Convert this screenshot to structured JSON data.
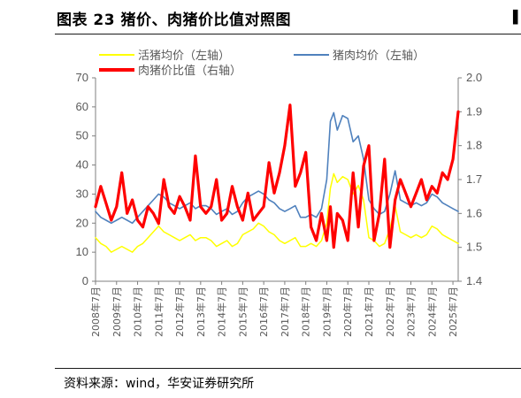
{
  "header": {
    "title": "图表 23 猪价、肉猪价比值对照图"
  },
  "footer": {
    "source": "资料来源：wind，华安证券研究所"
  },
  "colors": {
    "live_pig": "#ffff00",
    "pork": "#4f81bd",
    "ratio": "#ff0000",
    "axis": "#7f7f7f"
  },
  "chart_data": {
    "type": "line",
    "x_range": [
      2008.5,
      2025.75
    ],
    "x_ticks": [
      {
        "pos": 2008.5,
        "label": "2008年7月"
      },
      {
        "pos": 2009.5,
        "label": "2009年7月"
      },
      {
        "pos": 2010.5,
        "label": "2010年7月"
      },
      {
        "pos": 2011.5,
        "label": "2011年7月"
      },
      {
        "pos": 2012.5,
        "label": "2012年7月"
      },
      {
        "pos": 2013.5,
        "label": "2013年7月"
      },
      {
        "pos": 2014.5,
        "label": "2014年7月"
      },
      {
        "pos": 2015.5,
        "label": "2015年7月"
      },
      {
        "pos": 2016.5,
        "label": "2016年7月"
      },
      {
        "pos": 2017.5,
        "label": "2017年7月"
      },
      {
        "pos": 2018.5,
        "label": "2018年7月"
      },
      {
        "pos": 2019.5,
        "label": "2019年7月"
      },
      {
        "pos": 2020.5,
        "label": "2020年7月"
      },
      {
        "pos": 2021.5,
        "label": "2021年7月"
      },
      {
        "pos": 2022.5,
        "label": "2022年7月"
      },
      {
        "pos": 2023.5,
        "label": "2023年7月"
      },
      {
        "pos": 2024.5,
        "label": "2024年7月"
      },
      {
        "pos": 2025.5,
        "label": "2025年7月"
      }
    ],
    "y_left": {
      "range": [
        0,
        70
      ],
      "ticks": [
        "0",
        "10",
        "20",
        "30",
        "40",
        "50",
        "60",
        "70"
      ]
    },
    "y_right": {
      "range": [
        1.4,
        2.0
      ],
      "ticks": [
        "1.4",
        "1.5",
        "1.6",
        "1.7",
        "1.8",
        "1.9",
        "2.0"
      ]
    },
    "legend": [
      {
        "label": "活猪均价（左轴）"
      },
      {
        "label": "猪肉均价（左轴）"
      },
      {
        "label": "肉猪价比值（右轴）"
      }
    ],
    "series": [
      {
        "name": "活猪均价（左轴）",
        "axis": "left",
        "x": [
          2008.5,
          2008.75,
          2009.0,
          2009.25,
          2009.5,
          2009.75,
          2010.0,
          2010.25,
          2010.5,
          2010.75,
          2011.0,
          2011.25,
          2011.5,
          2011.75,
          2012.0,
          2012.25,
          2012.5,
          2012.75,
          2013.0,
          2013.25,
          2013.5,
          2013.75,
          2014.0,
          2014.25,
          2014.5,
          2014.75,
          2015.0,
          2015.25,
          2015.5,
          2015.75,
          2016.0,
          2016.25,
          2016.5,
          2016.75,
          2017.0,
          2017.25,
          2017.5,
          2017.75,
          2018.0,
          2018.25,
          2018.5,
          2018.75,
          2019.0,
          2019.25,
          2019.5,
          2019.67,
          2019.83,
          2020.0,
          2020.25,
          2020.5,
          2020.75,
          2021.0,
          2021.25,
          2021.5,
          2021.75,
          2022.0,
          2022.25,
          2022.5,
          2022.75,
          2023.0,
          2023.25,
          2023.5,
          2023.75,
          2024.0,
          2024.25,
          2024.5,
          2024.75,
          2025.0,
          2025.25,
          2025.5,
          2025.75
        ],
        "values": [
          15,
          13,
          12,
          10,
          11,
          12,
          11,
          10,
          12,
          13,
          15,
          17,
          19,
          17,
          16,
          15,
          14,
          15,
          16,
          14,
          15,
          15,
          14,
          12,
          13,
          14,
          12,
          13,
          16,
          17,
          18,
          20,
          19,
          17,
          16,
          14,
          13,
          14,
          15,
          12,
          12,
          13,
          12,
          14,
          20,
          32,
          37,
          34,
          36,
          35,
          30,
          33,
          28,
          15,
          14,
          12,
          13,
          18,
          26,
          17,
          16,
          15,
          16,
          15,
          16,
          19,
          18,
          16,
          15,
          14,
          13
        ]
      },
      {
        "name": "猪肉均价（左轴）",
        "axis": "left",
        "x": [
          2008.5,
          2008.75,
          2009.0,
          2009.25,
          2009.5,
          2009.75,
          2010.0,
          2010.25,
          2010.5,
          2010.75,
          2011.0,
          2011.25,
          2011.5,
          2011.75,
          2012.0,
          2012.25,
          2012.5,
          2012.75,
          2013.0,
          2013.25,
          2013.5,
          2013.75,
          2014.0,
          2014.25,
          2014.5,
          2014.75,
          2015.0,
          2015.25,
          2015.5,
          2015.75,
          2016.0,
          2016.25,
          2016.5,
          2016.75,
          2017.0,
          2017.25,
          2017.5,
          2017.75,
          2018.0,
          2018.25,
          2018.5,
          2018.75,
          2019.0,
          2019.25,
          2019.5,
          2019.67,
          2019.83,
          2020.0,
          2020.25,
          2020.5,
          2020.75,
          2021.0,
          2021.25,
          2021.5,
          2021.75,
          2022.0,
          2022.25,
          2022.5,
          2022.75,
          2023.0,
          2023.25,
          2023.5,
          2023.75,
          2024.0,
          2024.25,
          2024.5,
          2024.75,
          2025.0,
          2025.25,
          2025.5,
          2025.75
        ],
        "values": [
          24,
          22,
          21,
          20,
          21,
          22,
          21,
          20,
          22,
          24,
          26,
          28,
          30,
          29,
          27,
          26,
          25,
          26,
          27,
          25,
          26,
          26,
          25,
          23,
          24,
          25,
          23,
          24,
          27,
          29,
          30,
          31,
          30,
          28,
          27,
          25,
          24,
          25,
          26,
          22,
          22,
          23,
          22,
          25,
          35,
          55,
          58,
          52,
          57,
          56,
          48,
          50,
          42,
          28,
          25,
          23,
          24,
          30,
          38,
          28,
          27,
          26,
          27,
          26,
          27,
          30,
          29,
          27,
          26,
          25,
          24
        ]
      },
      {
        "name": "肉猪价比值（右轴）",
        "axis": "right",
        "x": [
          2008.5,
          2008.75,
          2009.0,
          2009.25,
          2009.5,
          2009.75,
          2010.0,
          2010.25,
          2010.5,
          2010.75,
          2011.0,
          2011.25,
          2011.5,
          2011.75,
          2012.0,
          2012.25,
          2012.5,
          2012.75,
          2013.0,
          2013.25,
          2013.5,
          2013.75,
          2014.0,
          2014.25,
          2014.5,
          2014.75,
          2015.0,
          2015.25,
          2015.5,
          2015.75,
          2016.0,
          2016.25,
          2016.5,
          2016.75,
          2017.0,
          2017.25,
          2017.5,
          2017.75,
          2018.0,
          2018.25,
          2018.5,
          2018.75,
          2019.0,
          2019.25,
          2019.5,
          2019.67,
          2019.83,
          2020.0,
          2020.25,
          2020.5,
          2020.75,
          2021.0,
          2021.25,
          2021.5,
          2021.75,
          2022.0,
          2022.25,
          2022.5,
          2022.75,
          2023.0,
          2023.25,
          2023.5,
          2023.75,
          2024.0,
          2024.25,
          2024.5,
          2024.75,
          2025.0,
          2025.25,
          2025.5,
          2025.75
        ],
        "values": [
          1.62,
          1.68,
          1.63,
          1.58,
          1.62,
          1.72,
          1.6,
          1.64,
          1.58,
          1.56,
          1.62,
          1.6,
          1.57,
          1.7,
          1.62,
          1.6,
          1.65,
          1.62,
          1.58,
          1.77,
          1.62,
          1.6,
          1.62,
          1.7,
          1.58,
          1.6,
          1.68,
          1.62,
          1.58,
          1.66,
          1.58,
          1.6,
          1.62,
          1.75,
          1.66,
          1.72,
          1.8,
          1.92,
          1.68,
          1.72,
          1.78,
          1.56,
          1.52,
          1.6,
          1.52,
          1.62,
          1.5,
          1.6,
          1.58,
          1.52,
          1.72,
          1.56,
          1.74,
          1.8,
          1.52,
          1.6,
          1.76,
          1.5,
          1.64,
          1.7,
          1.66,
          1.62,
          1.66,
          1.7,
          1.64,
          1.68,
          1.66,
          1.72,
          1.7,
          1.76,
          1.9
        ]
      }
    ]
  }
}
